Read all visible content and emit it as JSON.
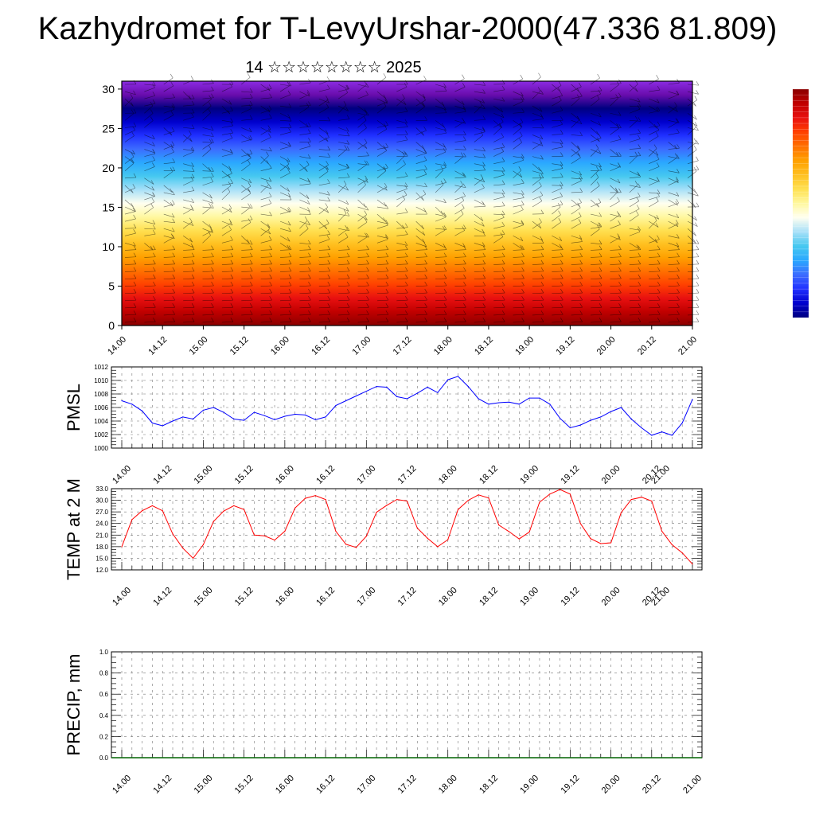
{
  "title": "Kazhydromet for T-LevyUrshar-2000(47.336 81.809)",
  "subtitle": "14 ☆☆☆☆☆☆☆☆ 2025",
  "colorbar": {
    "colors": [
      "#000080",
      "#0000cd",
      "#2030ff",
      "#3c6cff",
      "#2aa8ff",
      "#46c8f0",
      "#a8e0f8",
      "#fffff0",
      "#fff8a0",
      "#ffe050",
      "#ffc020",
      "#ffa000",
      "#ff7000",
      "#ff4000",
      "#e81010",
      "#c00000",
      "#8b0000"
    ]
  },
  "x_tick_labels": [
    "14.00",
    "14.12",
    "15.00",
    "15.12",
    "16.00",
    "16.12",
    "17.00",
    "17.12",
    "18.00",
    "18.12",
    "19.00",
    "19.12",
    "20.00",
    "20.12",
    "21.00"
  ],
  "chart_data": [
    {
      "type": "heatmap",
      "title": "",
      "ylabel": "",
      "ylim": [
        0,
        31
      ],
      "yticks": [
        0,
        5,
        10,
        15,
        20,
        25,
        30
      ],
      "xlim": [
        0,
        168
      ],
      "levels_bottom_to_top": [
        "#8b0000",
        "#c00000",
        "#e81010",
        "#ff4000",
        "#ff7000",
        "#ffa000",
        "#ffc020",
        "#ffe050",
        "#fff8a0",
        "#fffff0",
        "#a8e0f8",
        "#46c8f0",
        "#2aa8ff",
        "#3c6cff",
        "#2030ff",
        "#0000cd",
        "#000080",
        "#6a0dad",
        "#8a2be2"
      ],
      "wind_barbs": true
    },
    {
      "type": "line",
      "ylabel": "PMSL",
      "ylim": [
        1000,
        1012
      ],
      "yticks": [
        "1000",
        "1002",
        "1004",
        "1006",
        "1008",
        "1010",
        "1012"
      ],
      "color": "#0000ff",
      "x": [
        0,
        3,
        6,
        9,
        12,
        15,
        18,
        21,
        24,
        27,
        30,
        33,
        36,
        39,
        42,
        45,
        48,
        51,
        54,
        57,
        60,
        63,
        66,
        69,
        72,
        75,
        78,
        81,
        84,
        87,
        90,
        93,
        96,
        99,
        102,
        105,
        108,
        111,
        114,
        117,
        120,
        123,
        126,
        129,
        132,
        135,
        138,
        141,
        144,
        147,
        150,
        153,
        156,
        159,
        162,
        165,
        168
      ],
      "values": [
        1007,
        1006.5,
        1005.5,
        1003.7,
        1003.3,
        1004,
        1004.6,
        1004.3,
        1005.6,
        1006,
        1005.3,
        1004.3,
        1004.1,
        1005.3,
        1004.8,
        1004.2,
        1004.7,
        1005,
        1004.9,
        1004.2,
        1004.6,
        1006.3,
        1007,
        1007.7,
        1008.4,
        1009.1,
        1009,
        1007.6,
        1007.3,
        1008.1,
        1009,
        1008.2,
        1010.1,
        1010.6,
        1009.1,
        1007.3,
        1006.5,
        1006.7,
        1006.8,
        1006.5,
        1007.4,
        1007.4,
        1006.5,
        1004.4,
        1003,
        1003.4,
        1004.1,
        1004.6,
        1005.4,
        1006,
        1004.3,
        1003,
        1001.9,
        1002.4,
        1001.9,
        1003.7,
        1007.2
      ]
    },
    {
      "type": "line",
      "ylabel": "TEMP at 2 M",
      "ylim": [
        12,
        33
      ],
      "yticks": [
        "12.0",
        "15.0",
        "18.0",
        "21.0",
        "24.0",
        "27.0",
        "30.0",
        "33.0"
      ],
      "color": "#ff0000",
      "x": [
        0,
        3,
        6,
        9,
        12,
        15,
        18,
        21,
        24,
        27,
        30,
        33,
        36,
        39,
        42,
        45,
        48,
        51,
        54,
        57,
        60,
        63,
        66,
        69,
        72,
        75,
        78,
        81,
        84,
        87,
        90,
        93,
        96,
        99,
        102,
        105,
        108,
        111,
        114,
        117,
        120,
        123,
        126,
        129,
        132,
        135,
        138,
        141,
        144,
        147,
        150,
        153,
        156,
        159,
        162,
        165,
        168
      ],
      "values": [
        18,
        25,
        27.3,
        28.6,
        27.3,
        21.3,
        17.6,
        15,
        18.5,
        24.5,
        27.2,
        28.6,
        27.6,
        21,
        20.8,
        19.7,
        22,
        28,
        30.5,
        31.2,
        30.2,
        22,
        18.6,
        17.8,
        20.7,
        26.9,
        28.7,
        30.2,
        29.8,
        22.8,
        20.2,
        18,
        19.8,
        27.6,
        30,
        31.4,
        30.6,
        23.6,
        21.9,
        20,
        21.8,
        29.5,
        31.6,
        32.8,
        31.6,
        24,
        20.1,
        18.8,
        19,
        26.8,
        30.2,
        30.8,
        29.8,
        22,
        18.5,
        16.4,
        13.5
      ]
    },
    {
      "type": "bar",
      "ylabel": "PRECIP, mm",
      "ylim": [
        0,
        1
      ],
      "yticks": [
        "0.0",
        "0.2",
        "0.4",
        "0.6",
        "0.8",
        "1.0"
      ],
      "values": []
    }
  ]
}
